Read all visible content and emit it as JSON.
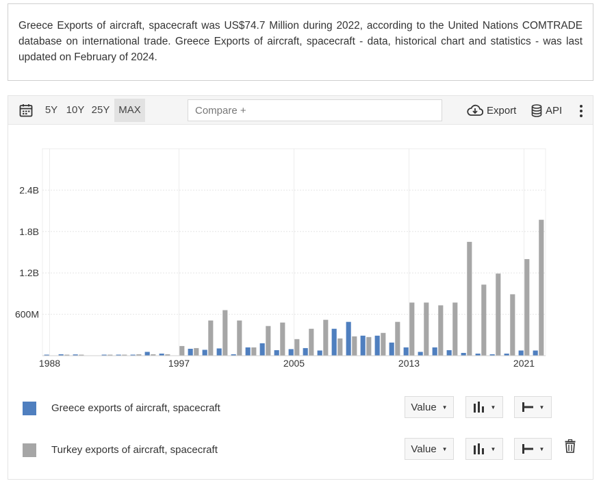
{
  "description": "Greece Exports of aircraft, spacecraft was US$74.7 Million during 2022, according to the United Nations COMTRADE database on international trade. Greece Exports of aircraft, spacecraft - data, historical chart and statistics - was last updated on February of 2024.",
  "toolbar": {
    "ranges": [
      "5Y",
      "10Y",
      "25Y",
      "MAX"
    ],
    "active_range": "MAX",
    "compare_placeholder": "Compare +",
    "export_label": "Export",
    "api_label": "API"
  },
  "legend": {
    "items": [
      {
        "label": "Greece exports of aircraft, spacecraft",
        "color": "#4f7fbf",
        "value_label": "Value"
      },
      {
        "label": "Turkey exports of aircraft, spacecraft",
        "color": "#a6a6a6",
        "value_label": "Value"
      }
    ]
  },
  "chart_data": {
    "type": "bar",
    "x": [
      1988,
      1989,
      1990,
      1991,
      1992,
      1993,
      1994,
      1995,
      1996,
      1997,
      1998,
      1999,
      2000,
      2001,
      2002,
      2003,
      2004,
      2005,
      2006,
      2007,
      2008,
      2009,
      2010,
      2011,
      2012,
      2013,
      2014,
      2015,
      2016,
      2017,
      2018,
      2019,
      2020,
      2021,
      2022
    ],
    "x_ticks": [
      "1988",
      "1997",
      "2005",
      "2013",
      "2021"
    ],
    "y_ticks": [
      "600M",
      "1.2B",
      "1.8B",
      "2.4B"
    ],
    "y_tick_values": [
      600000000,
      1200000000,
      1800000000,
      2400000000
    ],
    "ylim": [
      0,
      3000000000
    ],
    "grid": true,
    "series": [
      {
        "name": "Greece exports of aircraft, spacecraft",
        "color": "#4f7fbf",
        "values": [
          15000000,
          20000000,
          18000000,
          0,
          15000000,
          15000000,
          15000000,
          55000000,
          30000000,
          0,
          100000000,
          85000000,
          105000000,
          20000000,
          120000000,
          180000000,
          80000000,
          95000000,
          110000000,
          75000000,
          390000000,
          490000000,
          290000000,
          290000000,
          190000000,
          120000000,
          55000000,
          120000000,
          80000000,
          40000000,
          30000000,
          20000000,
          30000000,
          75000000,
          74700000
        ]
      },
      {
        "name": "Turkey exports of aircraft, spacecraft",
        "color": "#a6a6a6",
        "values": [
          0,
          15000000,
          15000000,
          0,
          15000000,
          15000000,
          20000000,
          20000000,
          20000000,
          140000000,
          110000000,
          510000000,
          660000000,
          510000000,
          120000000,
          430000000,
          480000000,
          240000000,
          390000000,
          520000000,
          250000000,
          280000000,
          270000000,
          330000000,
          490000000,
          770000000,
          770000000,
          730000000,
          770000000,
          1650000000,
          1030000000,
          1190000000,
          890000000,
          1400000000,
          1970000000
        ]
      }
    ]
  }
}
